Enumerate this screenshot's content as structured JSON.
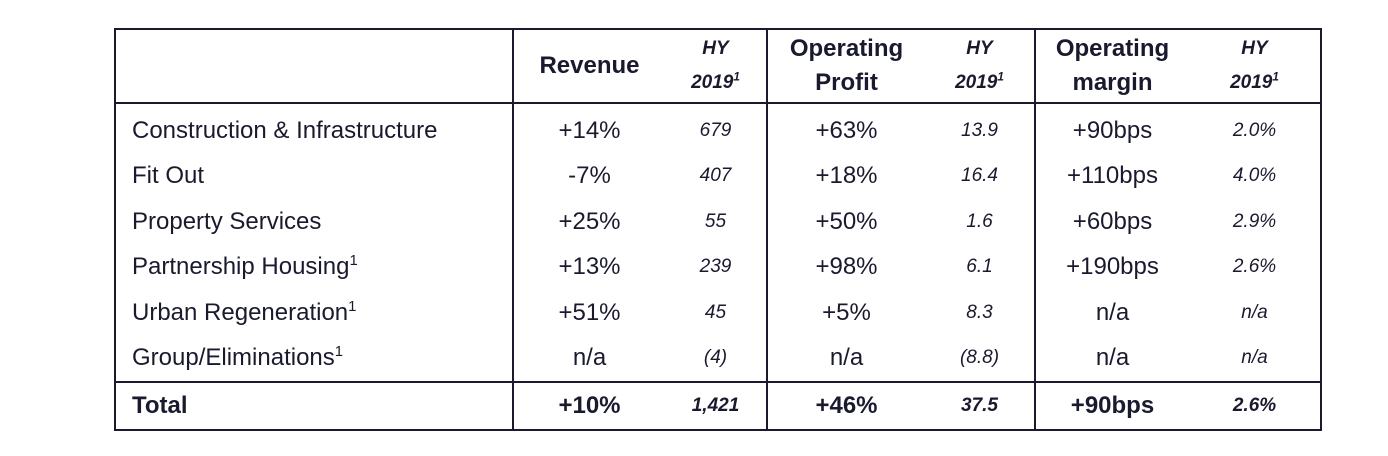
{
  "table": {
    "headers": {
      "revenue": "Revenue",
      "operating_profit_line1": "Operating",
      "operating_profit_line2": "Profit",
      "operating_margin_line1": "Operating",
      "operating_margin_line2": "margin",
      "hy_line1": "HY",
      "hy_line2": "2019",
      "hy_footnote": "1"
    },
    "rows": [
      {
        "label": "Construction & Infrastructure",
        "footnote": "",
        "revenue_change": "+14%",
        "revenue_hy2019": "679",
        "profit_change": "+63%",
        "profit_hy2019": "13.9",
        "margin_change": "+90bps",
        "margin_hy2019": "2.0%"
      },
      {
        "label": "Fit Out",
        "footnote": "",
        "revenue_change": "-7%",
        "revenue_hy2019": "407",
        "profit_change": "+18%",
        "profit_hy2019": "16.4",
        "margin_change": "+110bps",
        "margin_hy2019": "4.0%"
      },
      {
        "label": "Property Services",
        "footnote": "",
        "revenue_change": "+25%",
        "revenue_hy2019": "55",
        "profit_change": "+50%",
        "profit_hy2019": "1.6",
        "margin_change": "+60bps",
        "margin_hy2019": "2.9%"
      },
      {
        "label": "Partnership Housing",
        "footnote": "1",
        "revenue_change": "+13%",
        "revenue_hy2019": "239",
        "profit_change": "+98%",
        "profit_hy2019": "6.1",
        "margin_change": "+190bps",
        "margin_hy2019": "2.6%"
      },
      {
        "label": "Urban Regeneration",
        "footnote": "1",
        "revenue_change": "+51%",
        "revenue_hy2019": "45",
        "profit_change": "+5%",
        "profit_hy2019": "8.3",
        "margin_change": "n/a",
        "margin_hy2019": "n/a"
      },
      {
        "label": "Group/Eliminations",
        "footnote": "1",
        "revenue_change": "n/a",
        "revenue_hy2019": "(4)",
        "profit_change": "n/a",
        "profit_hy2019": "(8.8)",
        "margin_change": "n/a",
        "margin_hy2019": "n/a"
      }
    ],
    "total": {
      "label": "Total",
      "revenue_change": "+10%",
      "revenue_hy2019": "1,421",
      "profit_change": "+46%",
      "profit_hy2019": "37.5",
      "margin_change": "+90bps",
      "margin_hy2019": "2.6%"
    }
  }
}
